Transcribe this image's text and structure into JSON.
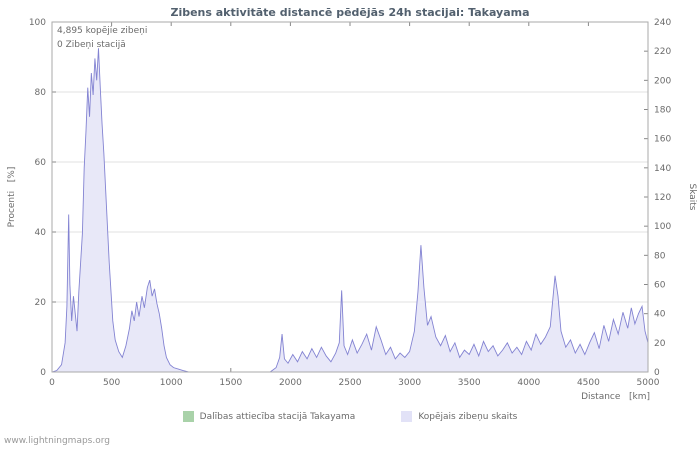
{
  "title": "Zibens aktivitāte distancē pēdējās 24h stacijai: Takayama",
  "footer": "www.lightningmaps.org",
  "legend": [
    {
      "label": "Dalības attiecība stacijā Takayama",
      "color": "#a9d2a9"
    },
    {
      "label": "Kopējais zibeņu skaits",
      "color": "#e2e2f7"
    }
  ],
  "chart_data": {
    "type": "area",
    "title": "Zibens aktivitāte distancē pēdējās 24h stacijai: Takayama",
    "xlabel": "Distance   [km]",
    "annotations": [
      "4,895 kopējie zibeņi",
      "0 Zibeņi stacijā"
    ],
    "x_axis": {
      "min": 0,
      "max": 5000,
      "tick_step": 500
    },
    "left_axis": {
      "label": "Procenti   [%]",
      "min": 0,
      "max": 100,
      "tick_step": 20
    },
    "right_axis": {
      "label": "Skaits",
      "min": 0,
      "max": 240,
      "tick_step": 20
    },
    "grid": "horizontal",
    "legend_position": "bottom-center",
    "series": [
      {
        "name": "Dalības attiecība stacijā Takayama",
        "axis": "left",
        "color": "#a9d2a9",
        "constant_value": 0
      },
      {
        "name": "Kopējais zibeņu skaits",
        "axis": "right",
        "fill": "#e8e8f8",
        "line": "#8383d2",
        "points": [
          [
            0,
            0
          ],
          [
            40,
            1
          ],
          [
            80,
            5
          ],
          [
            110,
            20
          ],
          [
            125,
            45
          ],
          [
            140,
            108
          ],
          [
            150,
            60
          ],
          [
            165,
            35
          ],
          [
            180,
            52
          ],
          [
            195,
            40
          ],
          [
            210,
            28
          ],
          [
            225,
            55
          ],
          [
            240,
            75
          ],
          [
            255,
            95
          ],
          [
            270,
            140
          ],
          [
            285,
            165
          ],
          [
            300,
            195
          ],
          [
            315,
            175
          ],
          [
            330,
            205
          ],
          [
            345,
            190
          ],
          [
            360,
            215
          ],
          [
            375,
            200
          ],
          [
            390,
            222
          ],
          [
            405,
            195
          ],
          [
            420,
            170
          ],
          [
            435,
            150
          ],
          [
            450,
            125
          ],
          [
            465,
            100
          ],
          [
            480,
            75
          ],
          [
            495,
            55
          ],
          [
            510,
            35
          ],
          [
            530,
            22
          ],
          [
            560,
            14
          ],
          [
            590,
            10
          ],
          [
            620,
            18
          ],
          [
            650,
            30
          ],
          [
            670,
            42
          ],
          [
            690,
            35
          ],
          [
            710,
            48
          ],
          [
            730,
            38
          ],
          [
            755,
            52
          ],
          [
            775,
            44
          ],
          [
            800,
            58
          ],
          [
            820,
            63
          ],
          [
            840,
            52
          ],
          [
            860,
            57
          ],
          [
            880,
            47
          ],
          [
            900,
            40
          ],
          [
            920,
            30
          ],
          [
            940,
            18
          ],
          [
            960,
            10
          ],
          [
            990,
            5
          ],
          [
            1020,
            3
          ],
          [
            1060,
            2
          ],
          [
            1100,
            1
          ],
          [
            1150,
            0
          ],
          [
            1250,
            0
          ],
          [
            1350,
            0
          ],
          [
            1450,
            0
          ],
          [
            1550,
            0
          ],
          [
            1650,
            0
          ],
          [
            1750,
            0
          ],
          [
            1830,
            0
          ],
          [
            1880,
            3
          ],
          [
            1910,
            10
          ],
          [
            1930,
            26
          ],
          [
            1950,
            9
          ],
          [
            1980,
            6
          ],
          [
            2020,
            12
          ],
          [
            2060,
            7
          ],
          [
            2100,
            14
          ],
          [
            2140,
            9
          ],
          [
            2180,
            16
          ],
          [
            2220,
            10
          ],
          [
            2260,
            17
          ],
          [
            2300,
            11
          ],
          [
            2340,
            7
          ],
          [
            2380,
            13
          ],
          [
            2410,
            20
          ],
          [
            2430,
            56
          ],
          [
            2450,
            18
          ],
          [
            2480,
            12
          ],
          [
            2520,
            22
          ],
          [
            2560,
            13
          ],
          [
            2600,
            19
          ],
          [
            2640,
            26
          ],
          [
            2680,
            15
          ],
          [
            2720,
            31
          ],
          [
            2760,
            22
          ],
          [
            2800,
            12
          ],
          [
            2840,
            17
          ],
          [
            2880,
            9
          ],
          [
            2920,
            13
          ],
          [
            2960,
            10
          ],
          [
            3000,
            14
          ],
          [
            3040,
            28
          ],
          [
            3070,
            55
          ],
          [
            3095,
            87
          ],
          [
            3120,
            58
          ],
          [
            3150,
            32
          ],
          [
            3180,
            38
          ],
          [
            3220,
            24
          ],
          [
            3260,
            18
          ],
          [
            3300,
            25
          ],
          [
            3340,
            14
          ],
          [
            3380,
            20
          ],
          [
            3420,
            10
          ],
          [
            3460,
            15
          ],
          [
            3500,
            12
          ],
          [
            3540,
            19
          ],
          [
            3580,
            11
          ],
          [
            3620,
            21
          ],
          [
            3660,
            14
          ],
          [
            3700,
            18
          ],
          [
            3740,
            11
          ],
          [
            3780,
            15
          ],
          [
            3820,
            20
          ],
          [
            3860,
            13
          ],
          [
            3900,
            17
          ],
          [
            3940,
            12
          ],
          [
            3980,
            21
          ],
          [
            4020,
            15
          ],
          [
            4060,
            26
          ],
          [
            4100,
            19
          ],
          [
            4140,
            24
          ],
          [
            4180,
            31
          ],
          [
            4220,
            66
          ],
          [
            4245,
            52
          ],
          [
            4270,
            28
          ],
          [
            4310,
            17
          ],
          [
            4350,
            22
          ],
          [
            4390,
            13
          ],
          [
            4430,
            19
          ],
          [
            4470,
            12
          ],
          [
            4510,
            20
          ],
          [
            4550,
            27
          ],
          [
            4590,
            16
          ],
          [
            4630,
            32
          ],
          [
            4670,
            21
          ],
          [
            4710,
            36
          ],
          [
            4750,
            26
          ],
          [
            4790,
            41
          ],
          [
            4830,
            30
          ],
          [
            4860,
            44
          ],
          [
            4890,
            33
          ],
          [
            4920,
            40
          ],
          [
            4950,
            45
          ],
          [
            4975,
            28
          ],
          [
            5000,
            20
          ]
        ]
      }
    ]
  }
}
